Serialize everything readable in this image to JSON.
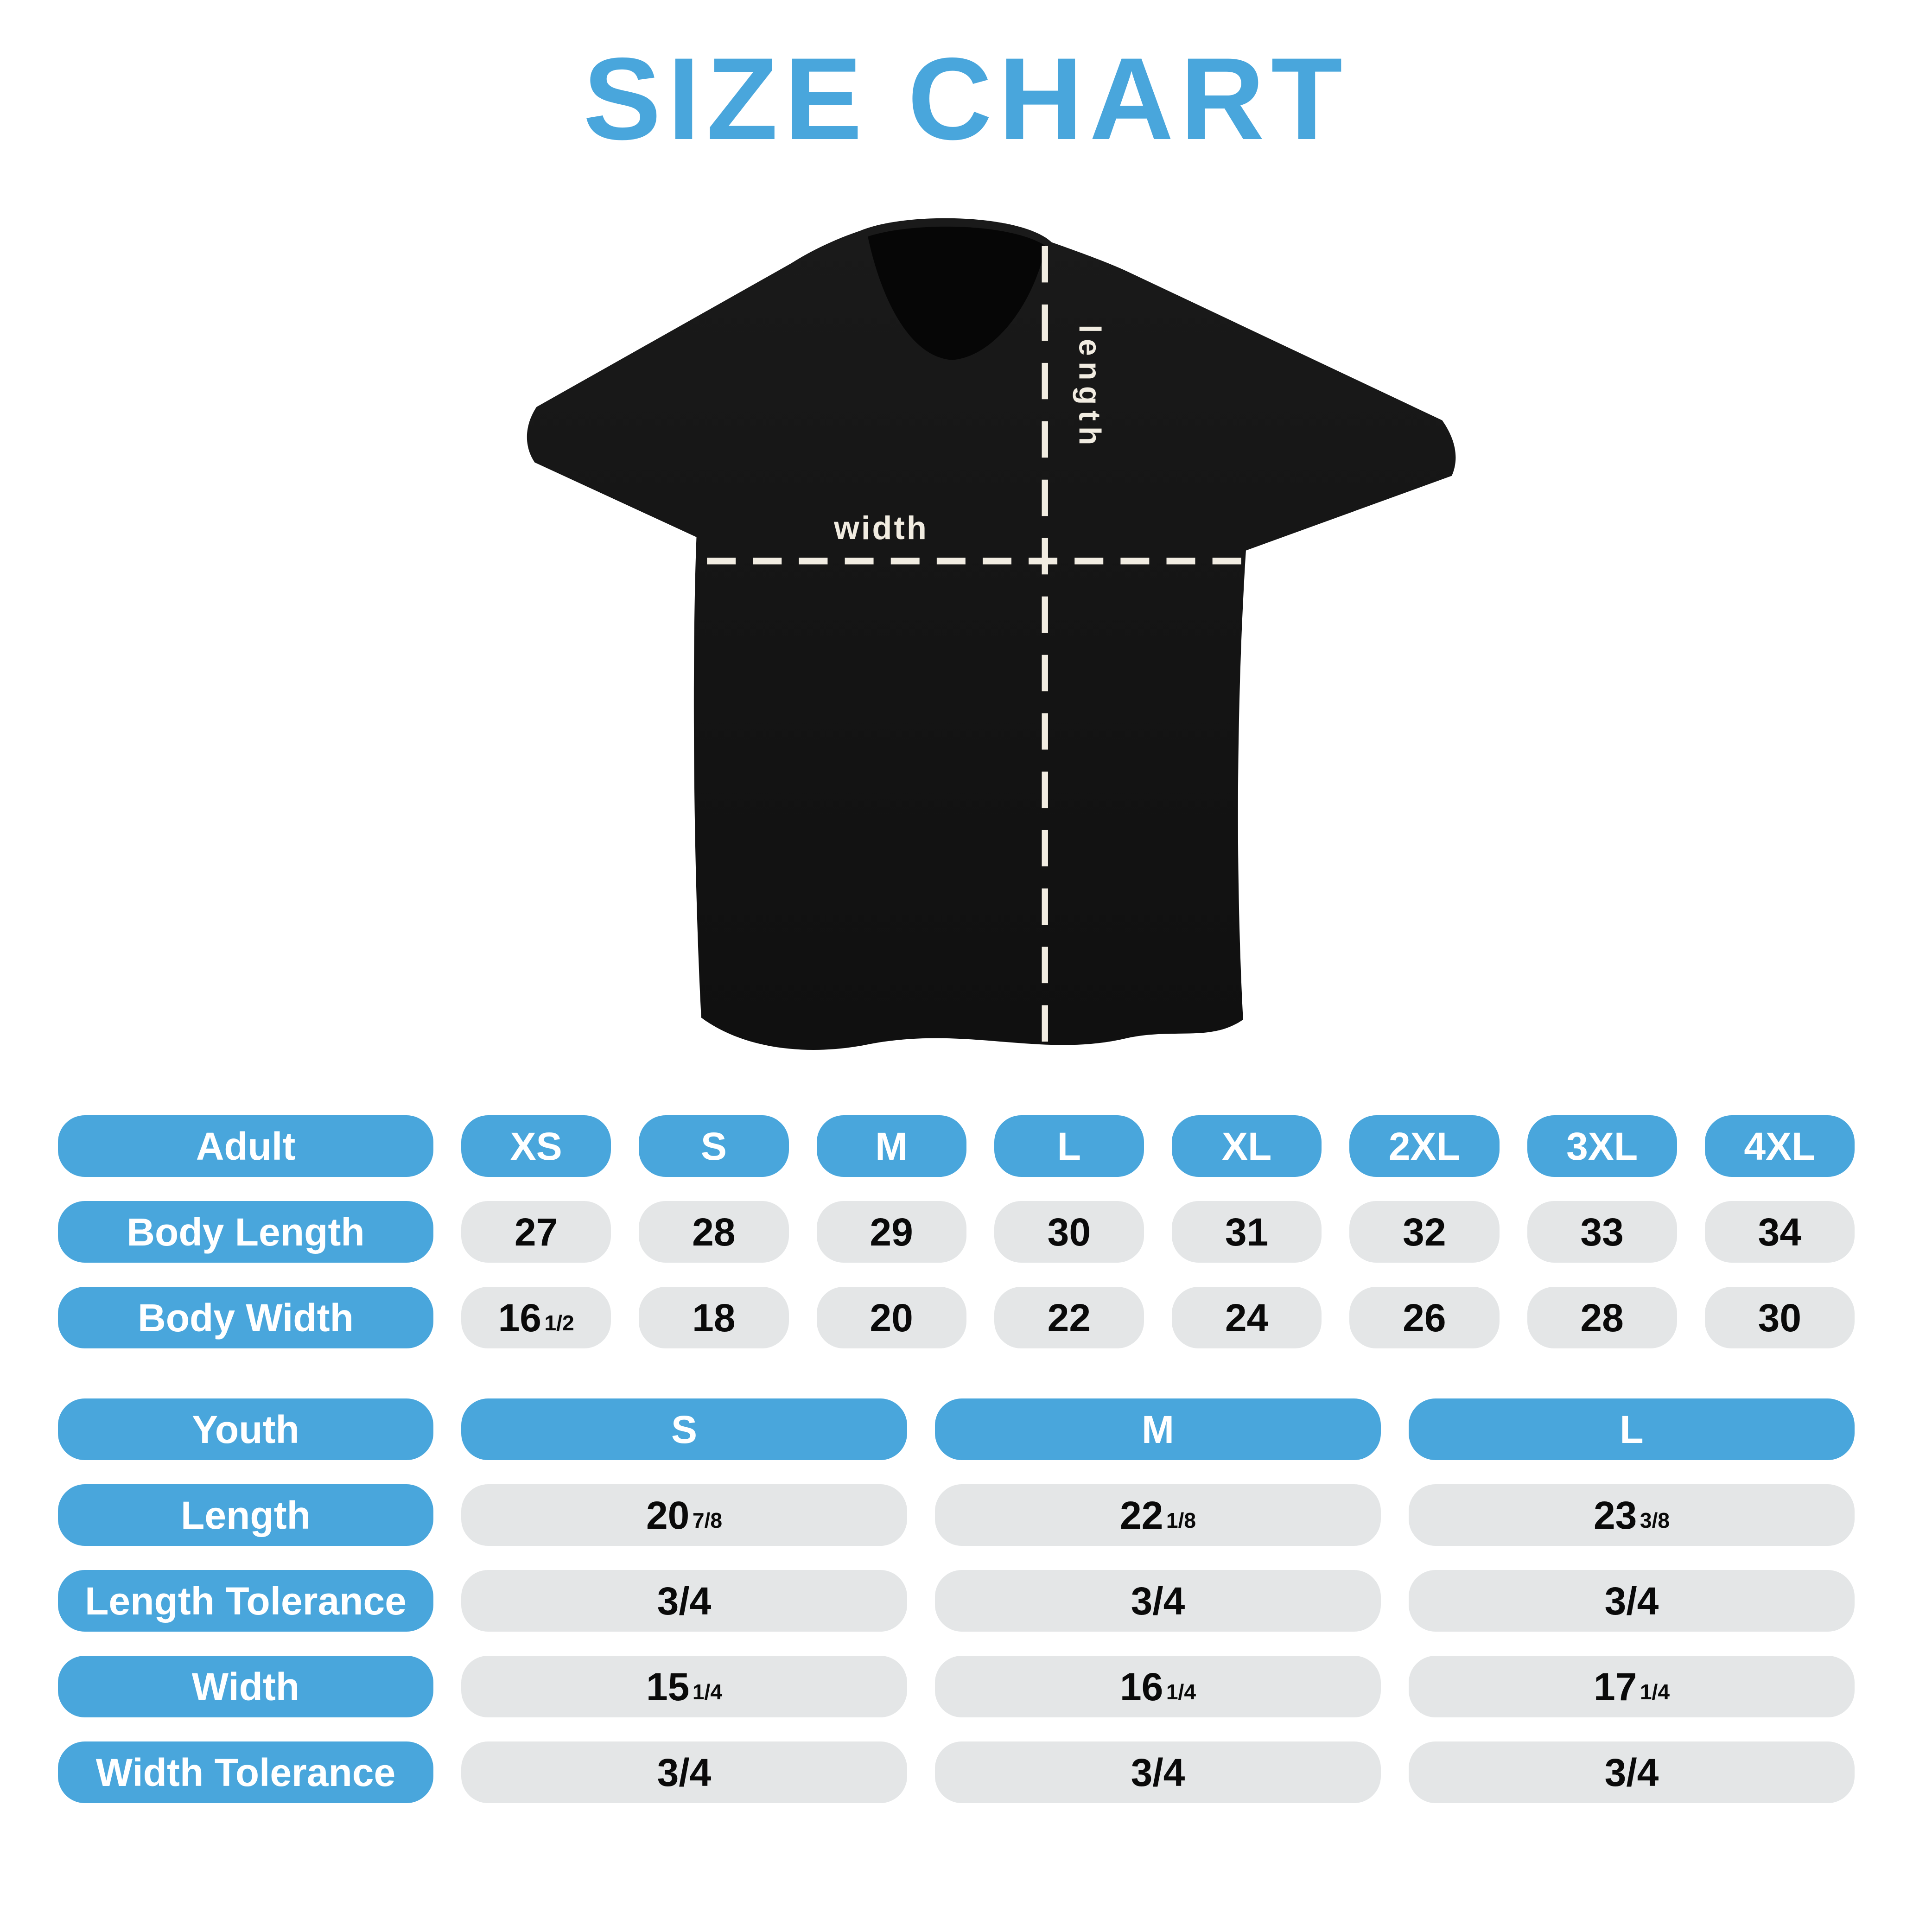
{
  "title": "SIZE CHART",
  "colors": {
    "accent_blue": "#49A6DC",
    "cell_gray": "#E4E6E7",
    "text_dark": "#0A0A0A",
    "shirt_black": "#141414",
    "dash_cream": "#F1ECE1"
  },
  "shirt": {
    "width_label": "width",
    "length_label": "length"
  },
  "adult": {
    "row_header": "Adult",
    "sizes": [
      "XS",
      "S",
      "M",
      "L",
      "XL",
      "2XL",
      "3XL",
      "4XL"
    ],
    "rows": [
      {
        "label": "Body Length",
        "values": [
          {
            "n": "27"
          },
          {
            "n": "28"
          },
          {
            "n": "29"
          },
          {
            "n": "30"
          },
          {
            "n": "31"
          },
          {
            "n": "32"
          },
          {
            "n": "33"
          },
          {
            "n": "34"
          }
        ]
      },
      {
        "label": "Body Width",
        "values": [
          {
            "n": "16",
            "f": "1/2"
          },
          {
            "n": "18"
          },
          {
            "n": "20"
          },
          {
            "n": "22"
          },
          {
            "n": "24"
          },
          {
            "n": "26"
          },
          {
            "n": "28"
          },
          {
            "n": "30"
          }
        ]
      }
    ]
  },
  "youth": {
    "row_header": "Youth",
    "sizes": [
      "S",
      "M",
      "L"
    ],
    "rows": [
      {
        "label": "Length",
        "values": [
          {
            "n": "20",
            "f": "7/8"
          },
          {
            "n": "22",
            "f": "1/8"
          },
          {
            "n": "23",
            "f": "3/8"
          }
        ]
      },
      {
        "label": "Length Tolerance",
        "values": [
          {
            "n": "3/4"
          },
          {
            "n": "3/4"
          },
          {
            "n": "3/4"
          }
        ]
      },
      {
        "label": "Width",
        "values": [
          {
            "n": "15",
            "f": "1/4"
          },
          {
            "n": "16",
            "f": "1/4"
          },
          {
            "n": "17",
            "f": "1/4"
          }
        ]
      },
      {
        "label": "Width Tolerance",
        "values": [
          {
            "n": "3/4"
          },
          {
            "n": "3/4"
          },
          {
            "n": "3/4"
          }
        ]
      }
    ]
  },
  "chart_data": [
    {
      "type": "table",
      "title": "Adult t-shirt sizes (inches)",
      "columns": [
        "Adult",
        "XS",
        "S",
        "M",
        "L",
        "XL",
        "2XL",
        "3XL",
        "4XL"
      ],
      "rows": [
        [
          "Body Length",
          "27",
          "28",
          "29",
          "30",
          "31",
          "32",
          "33",
          "34"
        ],
        [
          "Body Width",
          "16 1/2",
          "18",
          "20",
          "22",
          "24",
          "26",
          "28",
          "30"
        ]
      ]
    },
    {
      "type": "table",
      "title": "Youth t-shirt sizes (inches)",
      "columns": [
        "Youth",
        "S",
        "M",
        "L"
      ],
      "rows": [
        [
          "Length",
          "20 7/8",
          "22 1/8",
          "23 3/8"
        ],
        [
          "Length Tolerance",
          "3/4",
          "3/4",
          "3/4"
        ],
        [
          "Width",
          "15 1/4",
          "16 1/4",
          "17 1/4"
        ],
        [
          "Width Tolerance",
          "3/4",
          "3/4",
          "3/4"
        ]
      ]
    }
  ]
}
